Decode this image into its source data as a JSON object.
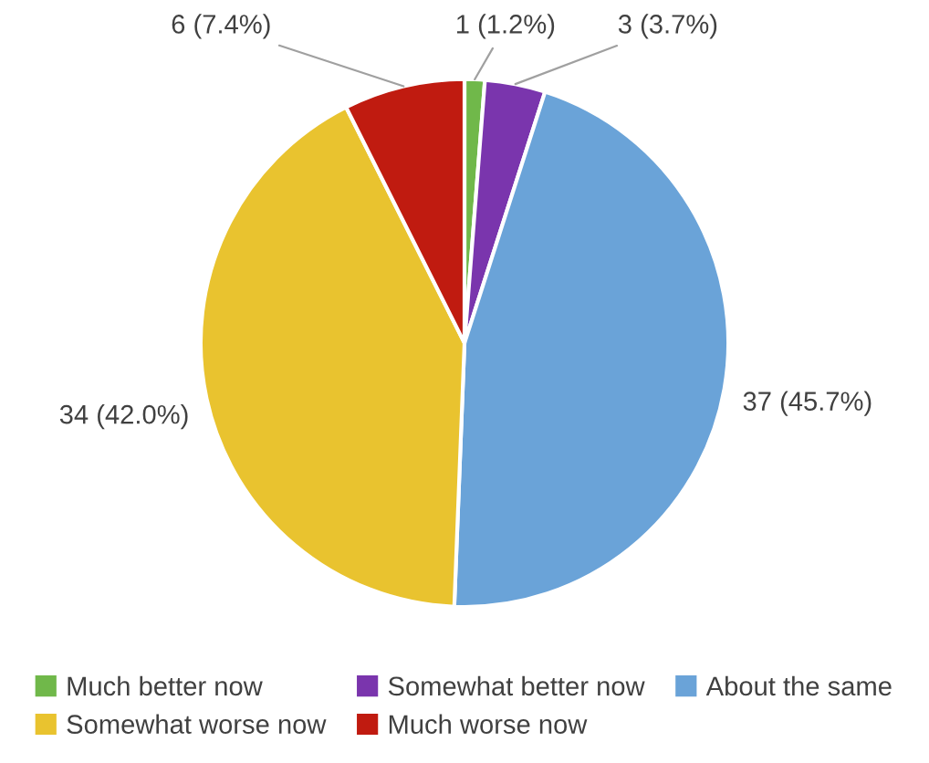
{
  "chart_data": {
    "type": "pie",
    "categories": [
      "Much better now",
      "Somewhat better now",
      "About the same",
      "Somewhat worse now",
      "Much worse now"
    ],
    "values": [
      1,
      3,
      37,
      34,
      6
    ],
    "value_labels": [
      "1 (1.2%)",
      "3 (3.7%)",
      "37 (45.7%)",
      "34 (42.0%)",
      "6 (7.4%)"
    ],
    "colors": [
      "#70b84a",
      "#7a35ad",
      "#6aa3d8",
      "#e9c32f",
      "#c01b10"
    ],
    "legend": "bottom"
  }
}
